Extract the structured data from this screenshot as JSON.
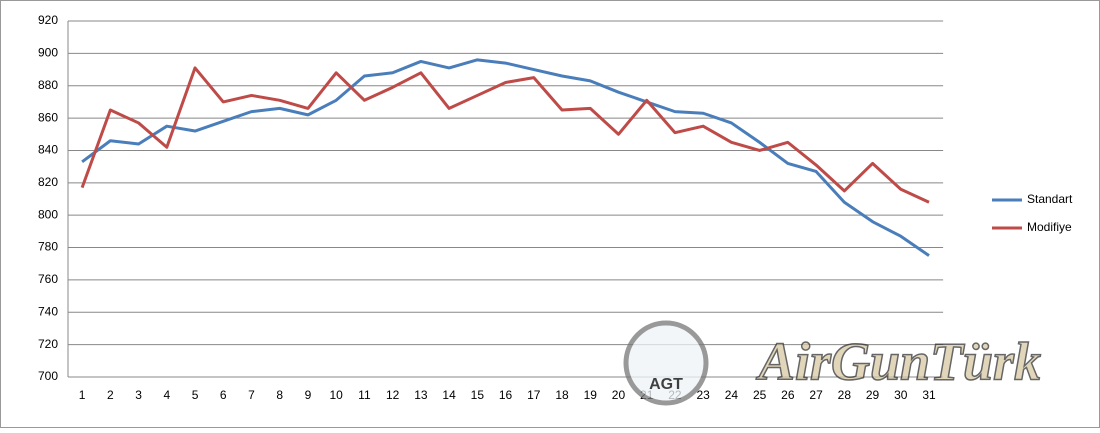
{
  "chart_data": {
    "type": "line",
    "x": [
      1,
      2,
      3,
      4,
      5,
      6,
      7,
      8,
      9,
      10,
      11,
      12,
      13,
      14,
      15,
      16,
      17,
      18,
      19,
      20,
      21,
      22,
      23,
      24,
      25,
      26,
      27,
      28,
      29,
      30,
      31
    ],
    "series": [
      {
        "name": "Standart",
        "color": "#4a7ebb",
        "values": [
          833,
          846,
          844,
          855,
          852,
          858,
          864,
          866,
          862,
          871,
          886,
          888,
          895,
          891,
          896,
          894,
          890,
          886,
          883,
          876,
          870,
          864,
          863,
          857,
          845,
          832,
          827,
          808,
          796,
          787,
          775
        ]
      },
      {
        "name": "Modifiye",
        "color": "#be4b48",
        "values": [
          817,
          865,
          857,
          842,
          891,
          870,
          874,
          871,
          866,
          888,
          871,
          879,
          888,
          866,
          874,
          882,
          885,
          865,
          866,
          850,
          871,
          851,
          855,
          845,
          840,
          845,
          831,
          815,
          832,
          816,
          808
        ]
      }
    ],
    "ylim": [
      700,
      920
    ],
    "yticks": [
      700,
      720,
      740,
      760,
      780,
      800,
      820,
      840,
      860,
      880,
      900,
      920
    ],
    "grid": true,
    "legend": "right",
    "watermark": {
      "badge": "AGT",
      "text": "AirGunTürk"
    }
  }
}
